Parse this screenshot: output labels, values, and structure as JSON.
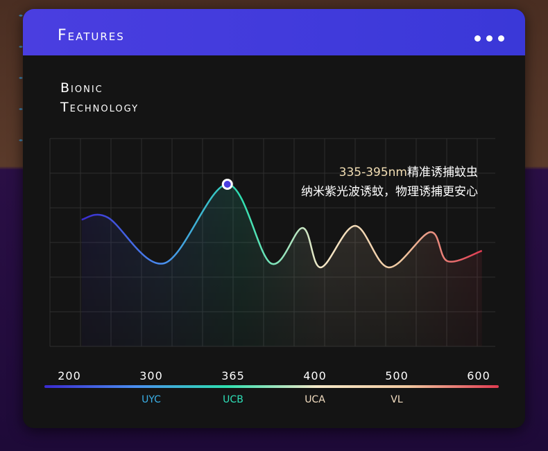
{
  "card": {
    "title": "Features",
    "menu_icon": "more-horizontal-icon"
  },
  "subtitle": [
    "Bionic",
    "Technology"
  ],
  "annotation": {
    "range": "335-395nm",
    "line1_rest": "精准诱捕蚊虫",
    "line2": "纳米紫光波诱蚊，物理诱捕更安心"
  },
  "chart_data": {
    "type": "line",
    "x_ticks": [
      "200",
      "300",
      "365",
      "400",
      "500",
      "600"
    ],
    "band_labels": [
      {
        "label": "UYC",
        "tick": "300",
        "color": "#3ab0e8"
      },
      {
        "label": "UCB",
        "tick": "365",
        "color": "#2ee0b8"
      },
      {
        "label": "UCA",
        "tick": "400",
        "color": "#f2dcc0"
      },
      {
        "label": "VL",
        "tick": "500",
        "color": "#f2dcc0"
      }
    ],
    "x_unit": "tick index (0=200 … 5=600)",
    "points": [
      [
        0.15,
        61
      ],
      [
        0.47,
        62
      ],
      [
        1.16,
        40
      ],
      [
        1.93,
        78
      ],
      [
        2.46,
        40
      ],
      [
        2.85,
        57
      ],
      [
        3.07,
        38
      ],
      [
        3.49,
        58
      ],
      [
        3.9,
        38
      ],
      [
        4.41,
        55
      ],
      [
        4.62,
        41
      ],
      [
        5.04,
        46
      ]
    ],
    "highlight_point": [
      1.93,
      78
    ],
    "ylim": [
      0,
      100
    ],
    "grid": true,
    "gradient_colors": [
      "#3a2ad0",
      "#4a8ef0",
      "#2ee0b0",
      "#f5e8c8",
      "#f0c8a0",
      "#e03a50"
    ]
  }
}
